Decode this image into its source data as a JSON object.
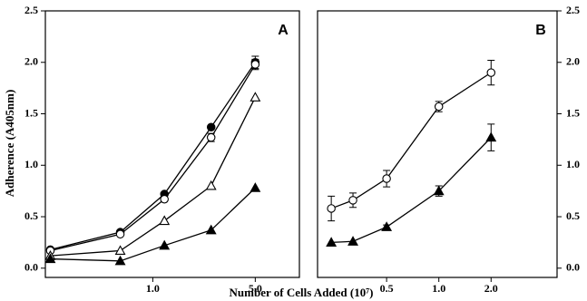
{
  "ylabel": "Adherence (A405nm)",
  "xlabel": "Number of Cells Added  (10⁷)",
  "chart_data": [
    {
      "type": "line",
      "title": "A",
      "xscale": "log",
      "x": [
        0.2,
        0.6,
        1.2,
        2.5,
        5.0
      ],
      "xlim": [
        0.185,
        10
      ],
      "xticks": [
        {
          "value": 1,
          "label": "1.0"
        },
        {
          "value": 5,
          "label": "5.0"
        }
      ],
      "ylim": [
        -0.09,
        2.5
      ],
      "yticks": [
        {
          "value": 0,
          "label": "0.0"
        },
        {
          "value": 0.5,
          "label": "0.5"
        },
        {
          "value": 1,
          "label": "1.0"
        },
        {
          "value": 1.5,
          "label": "1.5"
        },
        {
          "value": 2,
          "label": "2.0"
        },
        {
          "value": 2.5,
          "label": "2.5"
        }
      ],
      "tick_side": "left",
      "series": [
        {
          "marker": "circle",
          "filled": true,
          "color": "#000000",
          "values": [
            0.18,
            0.35,
            0.72,
            1.37,
            2.0
          ],
          "errors": [
            0,
            0,
            0,
            0,
            0.06
          ]
        },
        {
          "marker": "circle",
          "filled": false,
          "color": "#000000",
          "values": [
            0.17,
            0.33,
            0.67,
            1.27,
            1.98
          ],
          "errors": [
            0,
            0,
            0,
            0.04,
            0.05
          ]
        },
        {
          "marker": "triangle",
          "filled": false,
          "color": "#000000",
          "values": [
            0.12,
            0.17,
            0.46,
            0.8,
            1.66
          ],
          "errors": [
            0,
            0,
            0,
            0,
            0
          ]
        },
        {
          "marker": "triangle",
          "filled": true,
          "color": "#000000",
          "values": [
            0.09,
            0.07,
            0.22,
            0.37,
            0.78
          ],
          "errors": [
            0,
            0,
            0,
            0,
            0
          ]
        }
      ]
    },
    {
      "type": "line",
      "title": "B",
      "xscale": "log",
      "x": [
        0.24,
        0.32,
        0.5,
        1.0,
        2.0
      ],
      "xlim": [
        0.2,
        4.8
      ],
      "xticks": [
        0.5,
        {
          "value": 1,
          "label": "1.0"
        },
        {
          "value": 2,
          "label": "2.0"
        }
      ],
      "ylim": [
        -0.09,
        2.5
      ],
      "yticks": [
        {
          "value": 0,
          "label": "0.0"
        },
        {
          "value": 0.5,
          "label": "0.5"
        },
        {
          "value": 1,
          "label": "1.0"
        },
        {
          "value": 1.5,
          "label": "1.5"
        },
        {
          "value": 2,
          "label": "2.0"
        },
        {
          "value": 2.5,
          "label": "2.5"
        }
      ],
      "tick_side": "right",
      "series": [
        {
          "marker": "circle",
          "filled": false,
          "color": "#000000",
          "values": [
            0.58,
            0.66,
            0.87,
            1.57,
            1.9
          ],
          "errors": [
            0.12,
            0.07,
            0.08,
            0.05,
            0.12
          ]
        },
        {
          "marker": "triangle",
          "filled": true,
          "color": "#000000",
          "values": [
            0.25,
            0.26,
            0.4,
            0.75,
            1.27
          ],
          "errors": [
            0,
            0,
            0.02,
            0.05,
            0.13
          ]
        }
      ]
    }
  ]
}
